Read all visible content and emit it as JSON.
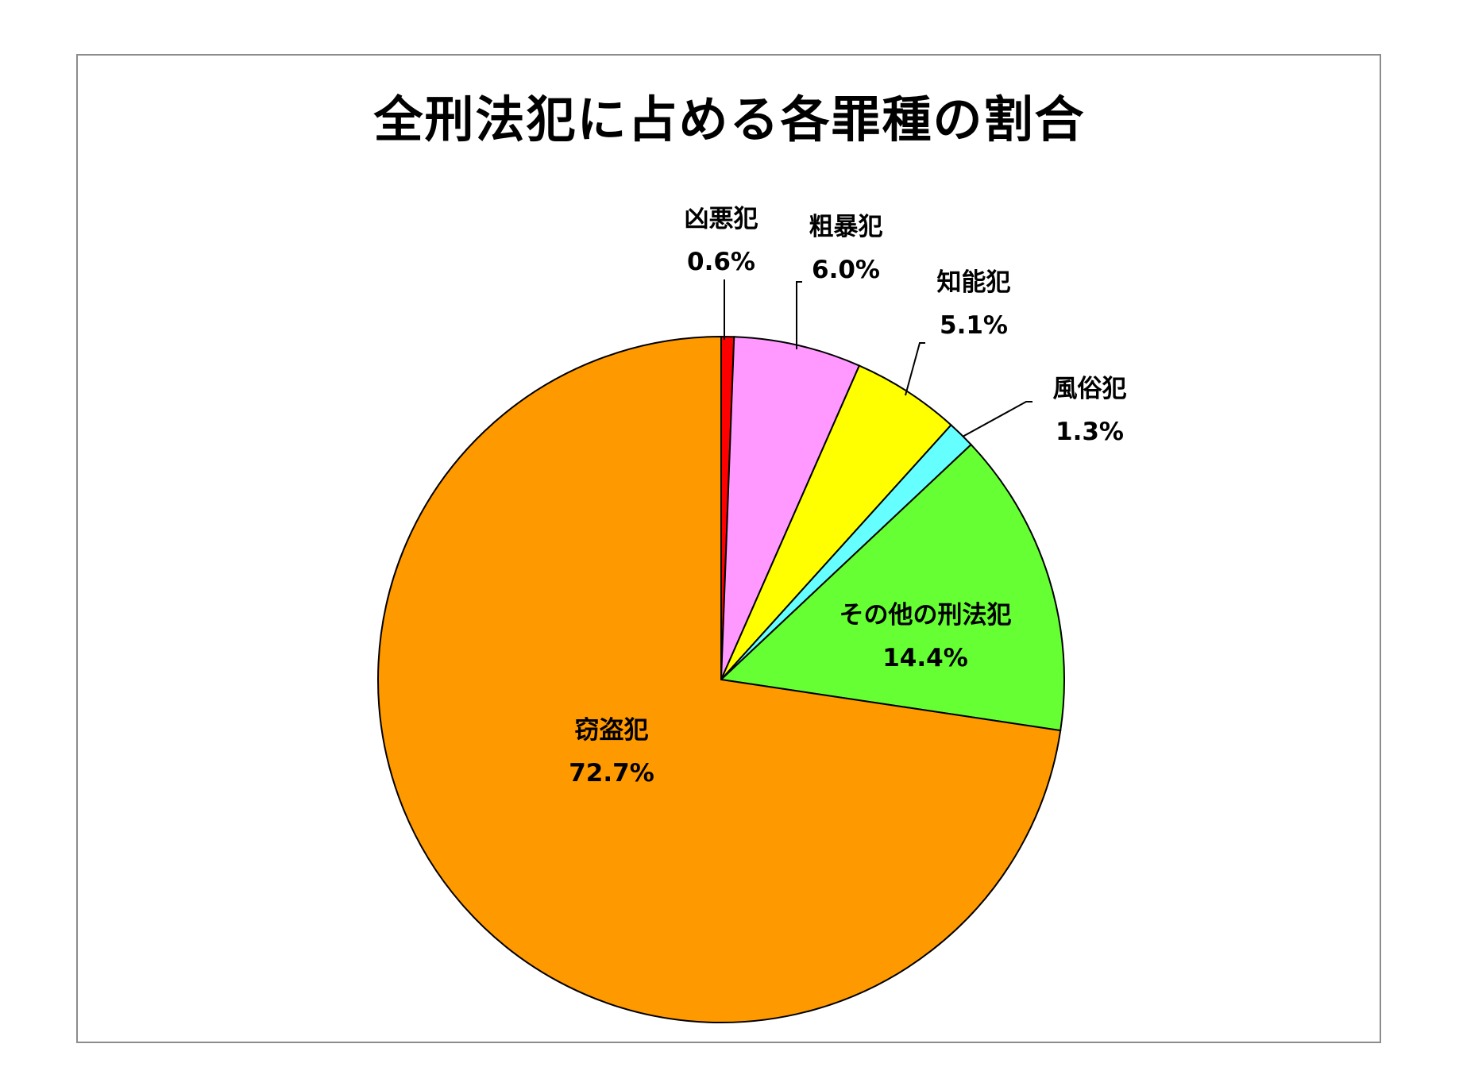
{
  "chart_data": {
    "type": "pie",
    "title": "全刑法犯に占める各罪種の割合",
    "slices": [
      {
        "name": "凶悪犯",
        "value": 0.6,
        "label": "0.6%",
        "color": "#FF0000"
      },
      {
        "name": "粗暴犯",
        "value": 6.0,
        "label": "6.0%",
        "color": "#FF99FF"
      },
      {
        "name": "知能犯",
        "value": 5.1,
        "label": "5.1%",
        "color": "#FFFF00"
      },
      {
        "name": "風俗犯",
        "value": 1.3,
        "label": "1.3%",
        "color": "#66FFFF"
      },
      {
        "name": "その他の刑法犯",
        "value": 14.4,
        "label": "14.4%",
        "color": "#66FF33"
      },
      {
        "name": "窃盗犯",
        "value": 72.7,
        "label": "72.7%",
        "color": "#FF9900"
      }
    ],
    "start_angle": "top",
    "direction": "clockwise"
  }
}
